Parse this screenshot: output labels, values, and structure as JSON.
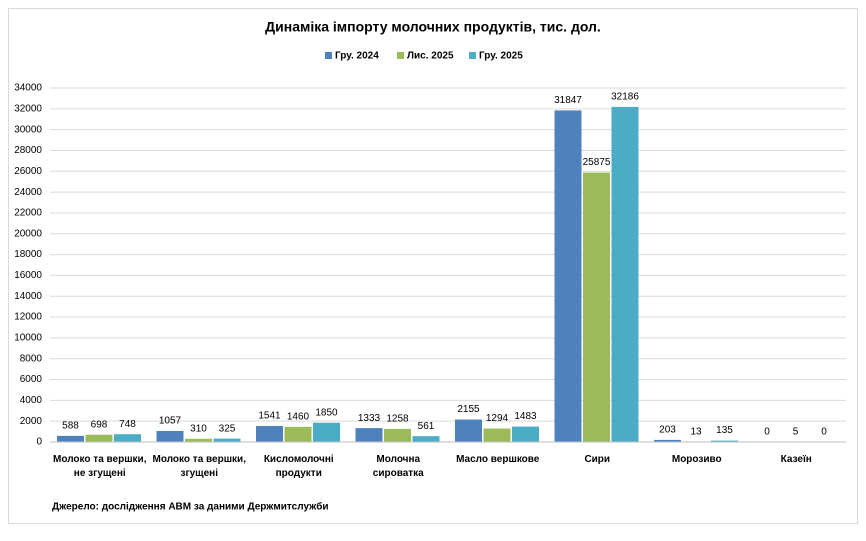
{
  "chart_data": {
    "type": "bar",
    "title": "Динаміка імпорту молочних продуктів, тис. дол.",
    "categories": [
      [
        "Молоко та вершки,",
        "не згущені"
      ],
      [
        "Молоко та вершки,",
        "згущені"
      ],
      [
        "Кисломолочні",
        "продукти"
      ],
      [
        "Молочна",
        "сироватка"
      ],
      [
        "Масло вершкове"
      ],
      [
        "Сири"
      ],
      [
        "Морозиво"
      ],
      [
        "Казеїн"
      ]
    ],
    "series": [
      {
        "name": "Гру. 2024",
        "color": "#4f81bd",
        "label_color": "#1f497d",
        "values": [
          588,
          1057,
          1541,
          1333,
          2155,
          31847,
          203,
          0
        ]
      },
      {
        "name": "Лис. 2025",
        "color": "#9bbb59",
        "label_color": "#4f6228",
        "values": [
          698,
          310,
          1460,
          1258,
          1294,
          25875,
          13,
          5
        ]
      },
      {
        "name": "Гру. 2025",
        "color": "#4bacc6",
        "label_color": "#31859c",
        "values": [
          748,
          325,
          1850,
          561,
          1483,
          32186,
          135,
          0
        ]
      }
    ],
    "ylim": [
      0,
      34000
    ],
    "yticks": [
      0,
      2000,
      4000,
      6000,
      8000,
      10000,
      12000,
      14000,
      16000,
      18000,
      20000,
      22000,
      24000,
      26000,
      28000,
      30000,
      32000,
      34000
    ],
    "grid": true,
    "legend": "top",
    "source": "Джерело: дослідження АВМ за даними Держмитслужби"
  }
}
